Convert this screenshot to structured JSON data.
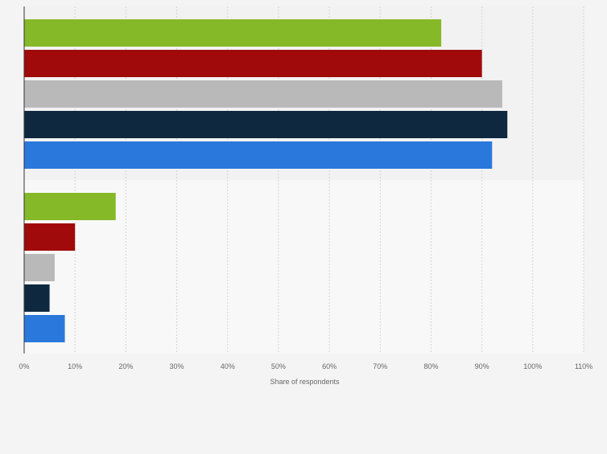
{
  "chart_data": {
    "type": "bar",
    "orientation": "horizontal",
    "title": "",
    "xlabel": "Share of respondents",
    "ylabel": "",
    "xlim": [
      0,
      110
    ],
    "x_ticks": [
      0,
      10,
      20,
      30,
      40,
      50,
      60,
      70,
      80,
      90,
      100,
      110
    ],
    "x_tick_labels": [
      "0%",
      "10%",
      "20%",
      "30%",
      "40%",
      "50%",
      "60%",
      "70%",
      "80%",
      "90%",
      "100%",
      "110%"
    ],
    "grid": "vertical dashed",
    "legend": "none",
    "groups": [
      {
        "label": "",
        "bars": [
          {
            "value": 82,
            "color": "#86b928"
          },
          {
            "value": 90,
            "color": "#a00a0a"
          },
          {
            "value": 94,
            "color": "#b9b9b9"
          },
          {
            "value": 95,
            "color": "#0e2840"
          },
          {
            "value": 92,
            "color": "#2a78dc"
          }
        ]
      },
      {
        "label": "",
        "bars": [
          {
            "value": 18,
            "color": "#86b928"
          },
          {
            "value": 10,
            "color": "#a00a0a"
          },
          {
            "value": 6,
            "color": "#b9b9b9"
          },
          {
            "value": 5,
            "color": "#0e2840"
          },
          {
            "value": 8,
            "color": "#2a78dc"
          }
        ]
      }
    ]
  }
}
